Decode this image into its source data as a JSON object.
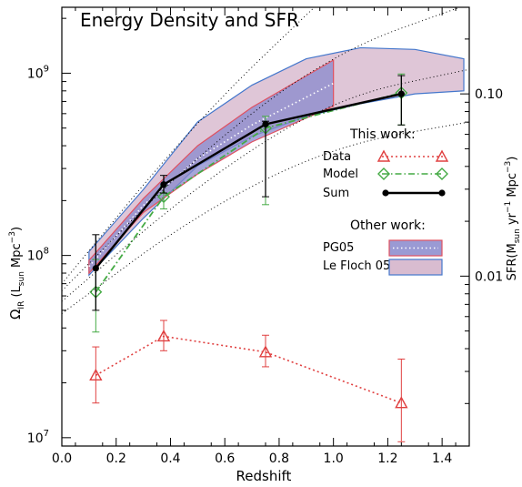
{
  "chart_data": {
    "type": "line",
    "title": "Energy Density and SFR",
    "xlabel": "Redshift",
    "ylabel_left": "Ω_IR (L_sun Mpc^-3)",
    "ylabel_right": "SFR(M_sun yr^-1 Mpc^-3)",
    "xlim": [
      0.0,
      1.5
    ],
    "ylim": [
      9000000.0,
      2300000000.0
    ],
    "yscale": "log",
    "x_ticks": [
      "0.0",
      "0.2",
      "0.4",
      "0.6",
      "0.8",
      "1.0",
      "1.2",
      "1.4"
    ],
    "y_ticks_left": [
      {
        "value": 10000000.0,
        "label": "10^7"
      },
      {
        "value": 100000000.0,
        "label": "10^8"
      },
      {
        "value": 1000000000.0,
        "label": "10^9"
      }
    ],
    "y_ticks_right": [
      {
        "value": 0.01,
        "label": "0.01"
      },
      {
        "value": 0.1,
        "label": "0.10"
      }
    ],
    "legend": {
      "this_work_header": "This work:",
      "other_work_header": "Other work:",
      "placement": "right",
      "items": [
        {
          "label": "Data",
          "color": "#e04040",
          "style": "dotted-triangle"
        },
        {
          "label": "Model",
          "color": "#44aa44",
          "style": "dashdot-diamond"
        },
        {
          "label": "Sum",
          "color": "#000000",
          "style": "solid-dot"
        },
        {
          "label": "PG05",
          "color": "#e05060",
          "fill": "#8888cc"
        },
        {
          "label": "Le Floch 05",
          "color": "#4477cc",
          "fill": "#d9bcd0"
        }
      ]
    },
    "series": [
      {
        "name": "Data",
        "color": "#e04040",
        "x": [
          0.125,
          0.375,
          0.75,
          1.25
        ],
        "y": [
          22000000.0,
          36000000.0,
          29500000.0,
          15500000.0
        ],
        "yerr_low": [
          15500000.0,
          30000000.0,
          24500000.0,
          9500000.0
        ],
        "yerr_high": [
          31500000.0,
          44000000.0,
          36500000.0,
          27000000.0
        ]
      },
      {
        "name": "Model",
        "color": "#44aa44",
        "x": [
          0.125,
          0.375,
          0.75,
          1.25
        ],
        "y": [
          63000000.0,
          210000000.0,
          500000000.0,
          780000000.0
        ],
        "yerr_low": [
          38000000.0,
          180000000.0,
          190000000.0,
          520000000.0
        ],
        "yerr_high": [
          95000000.0,
          240000000.0,
          580000000.0,
          990000000.0
        ]
      },
      {
        "name": "Sum",
        "color": "#000000",
        "x": [
          0.125,
          0.375,
          0.75,
          1.25
        ],
        "y": [
          85000000.0,
          245000000.0,
          525000000.0,
          770000000.0
        ],
        "yerr_low": [
          50000000.0,
          220000000.0,
          210000000.0,
          520000000.0
        ],
        "yerr_high": [
          130000000.0,
          275000000.0,
          545000000.0,
          970000000.0
        ]
      }
    ],
    "bands": [
      {
        "name": "Le Floch 05",
        "edge": "#4477cc",
        "fill": "#d9bcd0",
        "upper": [
          [
            0.1,
            105000000.0
          ],
          [
            0.3,
            230000000.0
          ],
          [
            0.5,
            540000000.0
          ],
          [
            0.7,
            860000000.0
          ],
          [
            0.9,
            1200000000.0
          ],
          [
            1.1,
            1380000000.0
          ],
          [
            1.3,
            1350000000.0
          ],
          [
            1.48,
            1200000000.0
          ]
        ],
        "lower": [
          [
            1.48,
            800000000.0
          ],
          [
            1.3,
            770000000.0
          ],
          [
            1.1,
            680000000.0
          ],
          [
            0.9,
            580000000.0
          ],
          [
            0.7,
            450000000.0
          ],
          [
            0.5,
            310000000.0
          ],
          [
            0.3,
            160000000.0
          ],
          [
            0.1,
            78000000.0
          ]
        ]
      },
      {
        "name": "PG05",
        "edge": "#e05060",
        "fill": "#8888cc",
        "upper": [
          [
            0.1,
            94000000.0
          ],
          [
            0.3,
            205000000.0
          ],
          [
            0.5,
            400000000.0
          ],
          [
            0.7,
            650000000.0
          ],
          [
            1.0,
            1180000000.0
          ]
        ],
        "lower": [
          [
            1.0,
            660000000.0
          ],
          [
            0.7,
            420000000.0
          ],
          [
            0.5,
            280000000.0
          ],
          [
            0.3,
            172000000.0
          ],
          [
            0.1,
            80000000.0
          ]
        ]
      }
    ],
    "reference_lines": [
      {
        "style": "dotted",
        "points": [
          [
            0.0,
            70000000.0
          ],
          [
            0.5,
            560000000.0
          ],
          [
            1.0,
            2900000000.0
          ]
        ]
      },
      {
        "style": "dotted",
        "points": [
          [
            0.0,
            64000000.0
          ],
          [
            0.5,
            360000000.0
          ],
          [
            1.0,
            1300000000.0
          ],
          [
            1.5,
            2400000000.0
          ]
        ]
      },
      {
        "style": "dotted",
        "points": [
          [
            0.0,
            56000000.0
          ],
          [
            0.5,
            245000000.0
          ],
          [
            1.0,
            730000000.0
          ],
          [
            1.5,
            1050000000.0
          ]
        ]
      },
      {
        "style": "dotted",
        "points": [
          [
            0.0,
            48000000.0
          ],
          [
            0.5,
            170000000.0
          ],
          [
            1.0,
            400000000.0
          ],
          [
            1.5,
            540000000.0
          ]
        ]
      }
    ],
    "white_dotted_line": {
      "color": "#ffffff",
      "points": [
        [
          0.1,
          87000000.0
        ],
        [
          0.3,
          188000000.0
        ],
        [
          0.5,
          340000000.0
        ],
        [
          0.7,
          520000000.0
        ],
        [
          1.0,
          880000000.0
        ]
      ]
    },
    "legend_placement": "right"
  }
}
